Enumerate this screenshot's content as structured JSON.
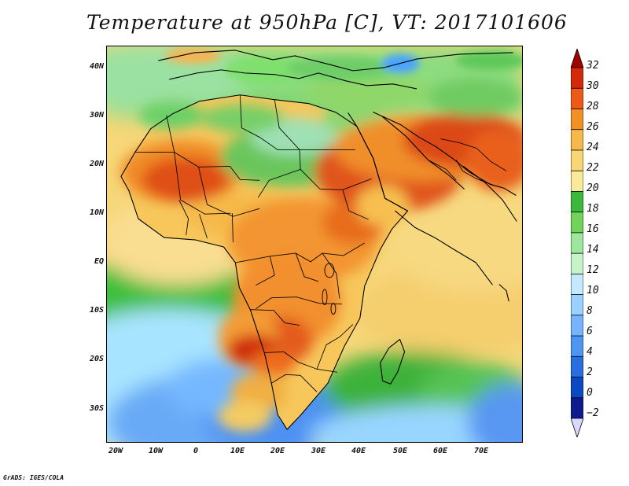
{
  "title": "Temperature at 950hPa [C], VT: 2017101606",
  "credit": "GrADS: IGES/COLA",
  "map": {
    "lon_range": [
      -23,
      80
    ],
    "lat_range": [
      -37,
      45
    ],
    "lat_labels": [
      "40N",
      "30N",
      "20N",
      "10N",
      "EQ",
      "10S",
      "20S",
      "30S"
    ],
    "lat_values": [
      40,
      30,
      20,
      10,
      0,
      -10,
      -20,
      -30
    ],
    "lon_labels": [
      "20W",
      "10W",
      "0",
      "10E",
      "20E",
      "30E",
      "40E",
      "50E",
      "60E",
      "70E"
    ],
    "lon_values": [
      -20,
      -10,
      0,
      10,
      20,
      30,
      40,
      50,
      60,
      70
    ]
  },
  "colorbar": {
    "labels": [
      "32",
      "30",
      "28",
      "26",
      "24",
      "22",
      "20",
      "18",
      "16",
      "14",
      "12",
      "10",
      "8",
      "6",
      "4",
      "2",
      "0",
      "−2"
    ],
    "colors": [
      "#a10000",
      "#d52a0a",
      "#ed5a18",
      "#f28f26",
      "#f7b84a",
      "#f9d675",
      "#fbe99a",
      "#3cb93c",
      "#70d45a",
      "#9ee69b",
      "#c7f3c8",
      "#c4e8ff",
      "#9bd0ff",
      "#76b4ff",
      "#4d96f2",
      "#2a6fe0",
      "#0a48c5",
      "#101a8f",
      "#d9d9ff"
    ],
    "units": "C"
  },
  "palette": {
    "land_hot": "#e34b14",
    "land_warm": "#f58a22",
    "land_mild": "#f6ba4c",
    "land_cool": "#f8d672",
    "green": "#4ec64a",
    "light_green": "#9de08f",
    "sea_pale": "#d7f4f0",
    "sea_blue": "#7fb8ff",
    "sea_deep": "#4b91f0",
    "border": "#000000"
  }
}
